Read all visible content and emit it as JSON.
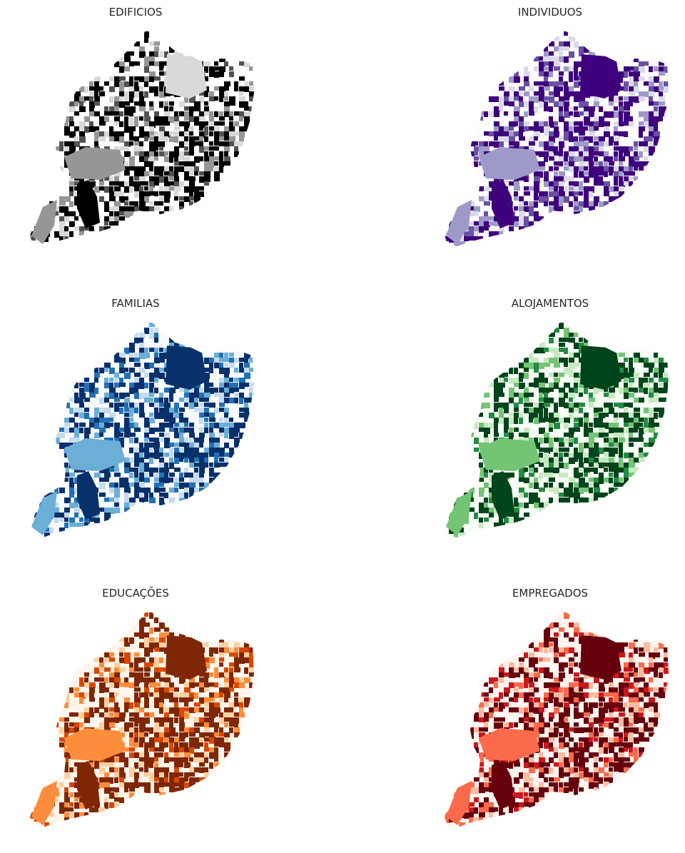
{
  "figure": {
    "panels": [
      {
        "title": "EDIFICIOS",
        "palette": [
          "#ffffff",
          "#d9d9d9",
          "#969696",
          "#525252",
          "#000000"
        ]
      },
      {
        "title": "INDIVIDUOS",
        "palette": [
          "#fcfbfd",
          "#dadaeb",
          "#9e9ac8",
          "#6a51a3",
          "#3f007d"
        ]
      },
      {
        "title": "FAMILIAS",
        "palette": [
          "#f7fbff",
          "#c6dbef",
          "#6baed6",
          "#2171b5",
          "#08306b"
        ]
      },
      {
        "title": "ALOJAMENTOS",
        "palette": [
          "#f7fcf5",
          "#c7e9c0",
          "#74c476",
          "#238b45",
          "#00441b"
        ]
      },
      {
        "title": "EDUCAÇÕES",
        "palette": [
          "#fff5eb",
          "#fdd0a2",
          "#fd8d3c",
          "#d94801",
          "#7f2704"
        ]
      },
      {
        "title": "EMPREGADOS",
        "palette": [
          "#fff5f0",
          "#fcbba1",
          "#fb6a4a",
          "#cb181d",
          "#67000d"
        ]
      }
    ]
  }
}
